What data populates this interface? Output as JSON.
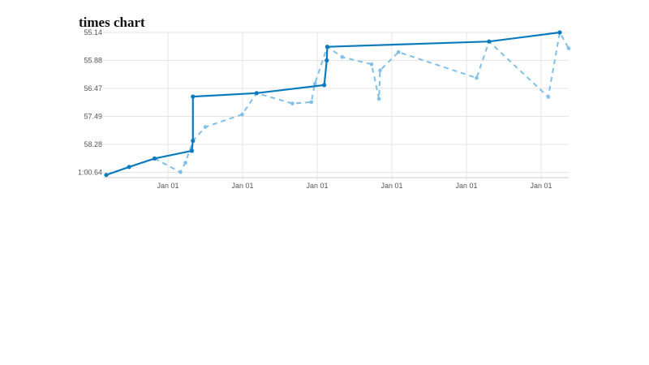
{
  "chart_data": {
    "type": "line",
    "title": "times chart",
    "xlabel": "",
    "ylabel": "",
    "y_reversed": true,
    "x_tick_labels": [
      "Jan 01",
      "Jan 01",
      "Jan 01",
      "Jan 01",
      "Jan 01",
      "Jan 01"
    ],
    "y_tick_labels": [
      "55.14",
      "55.88",
      "56.47",
      "57.49",
      "58.28",
      "1:00.64"
    ],
    "grid": true,
    "legend": "none",
    "series": [
      {
        "style": "solid",
        "color": "#0b7bbd",
        "points": [
          {
            "x": 0.0,
            "y": 60.86
          },
          {
            "x": 0.46,
            "y": 60.18
          },
          {
            "x": 0.97,
            "y": 59.47
          },
          {
            "x": 1.72,
            "y": 58.82
          },
          {
            "x": 1.74,
            "y": 58.18
          },
          {
            "x": 1.74,
            "y": 56.77
          },
          {
            "x": 3.02,
            "y": 56.64
          },
          {
            "x": 4.38,
            "y": 56.4
          },
          {
            "x": 4.43,
            "y": 55.88
          },
          {
            "x": 4.44,
            "y": 55.52
          },
          {
            "x": 7.69,
            "y": 55.38
          },
          {
            "x": 9.11,
            "y": 55.14
          }
        ]
      },
      {
        "style": "dashed",
        "color": "#7fc0e8",
        "points": [
          {
            "x": 0.97,
            "y": 59.47
          },
          {
            "x": 1.49,
            "y": 60.62
          },
          {
            "x": 1.59,
            "y": 59.82
          },
          {
            "x": 1.74,
            "y": 58.18
          },
          {
            "x": 1.99,
            "y": 57.79
          },
          {
            "x": 2.73,
            "y": 57.42
          },
          {
            "x": 3.02,
            "y": 56.64
          },
          {
            "x": 3.74,
            "y": 57.02
          },
          {
            "x": 4.12,
            "y": 56.97
          },
          {
            "x": 4.19,
            "y": 56.37
          },
          {
            "x": 4.44,
            "y": 55.52
          },
          {
            "x": 4.74,
            "y": 55.79
          },
          {
            "x": 5.33,
            "y": 55.96
          },
          {
            "x": 5.48,
            "y": 56.85
          },
          {
            "x": 5.5,
            "y": 56.09
          },
          {
            "x": 5.87,
            "y": 55.66
          },
          {
            "x": 7.44,
            "y": 56.25
          },
          {
            "x": 7.69,
            "y": 55.38
          },
          {
            "x": 8.88,
            "y": 56.78
          },
          {
            "x": 9.11,
            "y": 55.14
          },
          {
            "x": 9.29,
            "y": 55.56
          }
        ]
      }
    ]
  }
}
